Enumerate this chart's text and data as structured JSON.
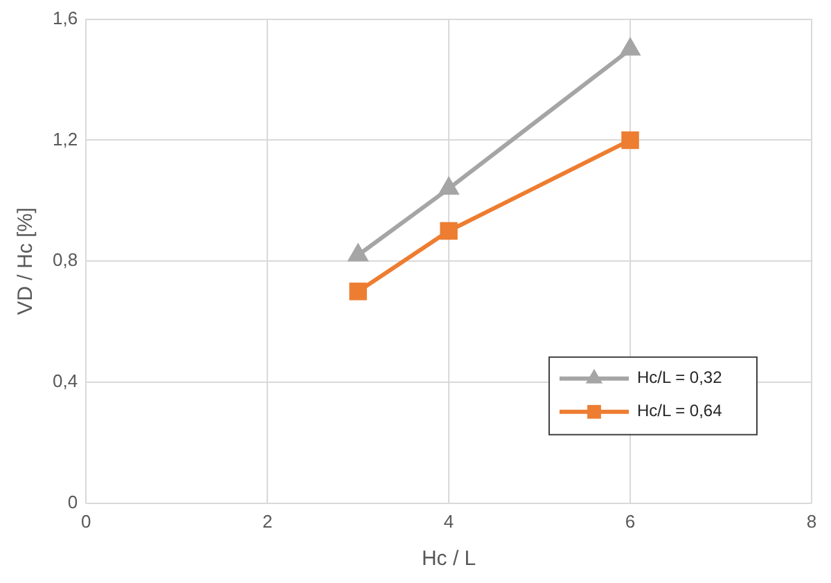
{
  "chart_data": {
    "type": "line",
    "xlabel": "Hc / L",
    "ylabel": "VD / Hc [%]",
    "xlim": [
      0,
      8
    ],
    "xticks": [
      0,
      2,
      4,
      6,
      8
    ],
    "ylim": [
      0,
      1.6
    ],
    "yticks": [
      {
        "value": 0,
        "label": "0"
      },
      {
        "value": 0.4,
        "label": "0,4"
      },
      {
        "value": 0.8,
        "label": "0,8"
      },
      {
        "value": 1.2,
        "label": "1,2"
      },
      {
        "value": 1.6,
        "label": "1,6"
      }
    ],
    "grid": true,
    "legend": "bottom right",
    "line_style": "solid",
    "series": [
      {
        "name": "Hc/L = 0,32",
        "color": "#a5a5a5",
        "marker": "triangle",
        "x": [
          3,
          4,
          6
        ],
        "values": [
          0.82,
          1.04,
          1.5
        ]
      },
      {
        "name": "Hc/L = 0,64",
        "color": "#ed7d31",
        "marker": "square",
        "x": [
          3,
          4,
          6
        ],
        "values": [
          0.7,
          0.9,
          1.2
        ]
      }
    ]
  }
}
